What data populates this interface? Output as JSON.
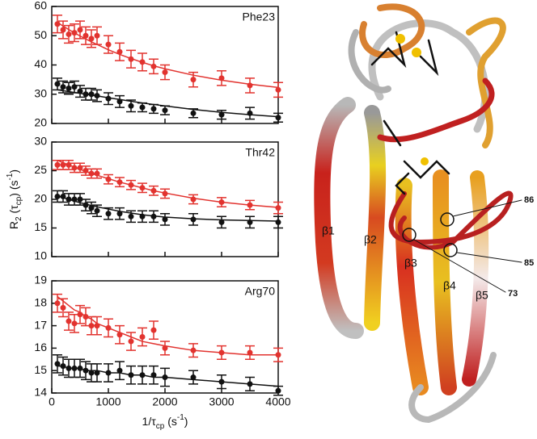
{
  "chart_data": [
    {
      "type": "scatter",
      "title": "Phe23",
      "x": [
        100,
        200,
        300,
        400,
        500,
        600,
        700,
        800,
        1000,
        1200,
        1400,
        1600,
        1800,
        2000,
        2500,
        3000,
        3500,
        4000
      ],
      "xlim": [
        0,
        4000
      ],
      "xticks": [
        0,
        1000,
        2000,
        3000,
        4000
      ],
      "x_tick_labels": false,
      "ylim": [
        20,
        60
      ],
      "yticks": [
        20,
        30,
        40,
        50,
        60
      ],
      "series": [
        {
          "color": "#e2332f",
          "values": [
            54,
            52,
            50.5,
            51,
            52,
            50,
            49,
            50,
            47,
            44.5,
            42,
            41,
            39.5,
            37.5,
            35,
            35.5,
            33,
            31.5
          ],
          "errors": [
            3,
            3,
            3,
            3,
            3,
            3,
            3,
            3,
            3,
            3,
            3,
            3,
            2.5,
            2.5,
            2.5,
            2.5,
            2.5,
            2.5
          ],
          "fit": [
            54.5,
            53.3,
            52.1,
            51,
            49.9,
            48.9,
            47.9,
            47,
            45.2,
            43.6,
            42.2,
            40.9,
            39.7,
            38.7,
            36.5,
            34.8,
            33.4,
            32.3
          ]
        },
        {
          "color": "#111111",
          "values": [
            33.5,
            32.5,
            32,
            32.5,
            31,
            30,
            30,
            29.5,
            28.5,
            27.5,
            26,
            25.5,
            25,
            24.5,
            23.5,
            23,
            23.5,
            22
          ],
          "errors": [
            2,
            2,
            2,
            2,
            2,
            2,
            2,
            2,
            2,
            2,
            2,
            1.5,
            1.5,
            1.5,
            1.5,
            1.5,
            2,
            1.5
          ],
          "fit": [
            31.5,
            31.2,
            30.9,
            30.6,
            30.3,
            30,
            29.7,
            29.4,
            28.8,
            28.2,
            27.6,
            27,
            26.5,
            26,
            24.8,
            23.8,
            23,
            22.3
          ]
        }
      ]
    },
    {
      "type": "scatter",
      "title": "Thr42",
      "x": [
        100,
        200,
        300,
        400,
        500,
        600,
        700,
        800,
        1000,
        1200,
        1400,
        1600,
        1800,
        2000,
        2500,
        3000,
        3500,
        4000
      ],
      "xlim": [
        0,
        4000
      ],
      "xticks": [
        0,
        1000,
        2000,
        3000,
        4000
      ],
      "x_tick_labels": false,
      "ylim": [
        10,
        30
      ],
      "yticks": [
        10,
        15,
        20,
        25,
        30
      ],
      "ylabel": [
        {
          "t": "R"
        },
        {
          "t": "2",
          "s": "sub"
        },
        {
          "t": " (τ"
        },
        {
          "t": "cp",
          "s": "sub"
        },
        {
          "t": ") (s"
        },
        {
          "t": "-1",
          "s": "super"
        },
        {
          "t": ")"
        }
      ],
      "series": [
        {
          "color": "#e2332f",
          "values": [
            26,
            26,
            26,
            25.5,
            25.5,
            25,
            24.5,
            24.5,
            23.5,
            23,
            22.5,
            22,
            21.5,
            21,
            20,
            19.5,
            19,
            18.5
          ],
          "errors": [
            0.8,
            0.8,
            0.8,
            0.8,
            0.8,
            0.8,
            0.8,
            0.8,
            0.8,
            0.8,
            0.8,
            0.8,
            0.8,
            0.8,
            0.8,
            0.8,
            0.8,
            1
          ],
          "fit": [
            26.8,
            26.4,
            26,
            25.6,
            25.2,
            24.9,
            24.5,
            24.2,
            23.6,
            23,
            22.5,
            22,
            21.5,
            21.1,
            20.2,
            19.5,
            19,
            18.6
          ]
        },
        {
          "color": "#111111",
          "values": [
            20.5,
            20.5,
            20,
            20,
            20,
            19,
            18.5,
            18,
            17.5,
            17.5,
            17,
            17,
            17,
            16.5,
            16.5,
            16,
            16,
            16
          ],
          "errors": [
            1,
            1,
            1,
            1,
            1,
            1,
            1,
            1,
            1,
            1,
            1,
            1,
            1,
            1,
            1,
            1,
            1,
            1
          ],
          "fit": [
            20.6,
            20.3,
            20,
            19.7,
            19.4,
            19.2,
            18.9,
            18.7,
            18.3,
            17.9,
            17.6,
            17.3,
            17.1,
            16.9,
            16.6,
            16.4,
            16.3,
            16.2
          ]
        }
      ]
    },
    {
      "type": "scatter",
      "title": "Arg70",
      "x": [
        100,
        200,
        300,
        400,
        500,
        600,
        700,
        800,
        1000,
        1200,
        1400,
        1600,
        1800,
        2000,
        2500,
        3000,
        3500,
        4000
      ],
      "xlim": [
        0,
        4000
      ],
      "xticks": [
        0,
        1000,
        2000,
        3000,
        4000
      ],
      "x_tick_labels": true,
      "xlabel": [
        {
          "t": "1/τ"
        },
        {
          "t": "cp",
          "s": "sub"
        },
        {
          "t": " (s"
        },
        {
          "t": "-1",
          "s": "super"
        },
        {
          "t": ")"
        }
      ],
      "ylim": [
        14,
        19
      ],
      "yticks": [
        14,
        15,
        16,
        17,
        18,
        19
      ],
      "series": [
        {
          "color": "#e2332f",
          "values": [
            18,
            17.8,
            17.2,
            17.1,
            17.5,
            17.4,
            17,
            17,
            16.9,
            16.6,
            16.3,
            16.5,
            16.8,
            16,
            15.9,
            15.8,
            15.8,
            15.7
          ],
          "errors": [
            0.4,
            0.4,
            0.4,
            0.4,
            0.4,
            0.4,
            0.4,
            0.4,
            0.4,
            0.4,
            0.4,
            0.4,
            0.4,
            0.3,
            0.3,
            0.3,
            0.3,
            0.3
          ],
          "fit": [
            18.3,
            18.1,
            17.9,
            17.7,
            17.6,
            17.4,
            17.3,
            17.1,
            16.9,
            16.7,
            16.5,
            16.3,
            16.2,
            16.1,
            15.9,
            15.8,
            15.7,
            15.7
          ]
        },
        {
          "color": "#111111",
          "values": [
            15.3,
            15.2,
            15.1,
            15.1,
            15.1,
            15,
            14.9,
            14.9,
            14.9,
            15,
            14.8,
            14.8,
            14.8,
            14.7,
            14.7,
            14.5,
            14.4,
            14.1
          ],
          "errors": [
            0.4,
            0.4,
            0.4,
            0.4,
            0.4,
            0.4,
            0.4,
            0.4,
            0.4,
            0.4,
            0.4,
            0.4,
            0.4,
            0.4,
            0.3,
            0.3,
            0.3,
            0.2
          ],
          "fit": [
            15.2,
            15.2,
            15.1,
            15.1,
            15.1,
            15,
            15,
            15,
            14.9,
            14.9,
            14.8,
            14.8,
            14.7,
            14.7,
            14.6,
            14.5,
            14.4,
            14.3
          ]
        }
      ]
    }
  ],
  "protein": {
    "strands": [
      "β1",
      "β2",
      "β3",
      "β4",
      "β5"
    ],
    "residues": [
      "86",
      "85",
      "73"
    ]
  }
}
